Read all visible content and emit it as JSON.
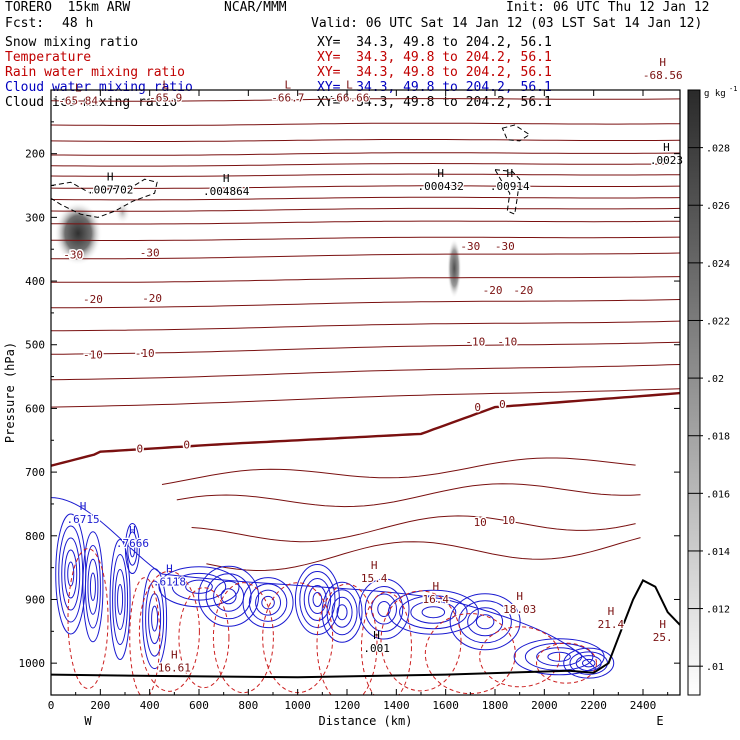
{
  "header": {
    "model": "TORERO  15km ARW",
    "center": "NCAR/MMM",
    "init": "Init: 06 UTC Thu 12 Jan 12",
    "fcst_label": "Fcst:",
    "fcst_value": "48 h",
    "valid": "Valid: 06 UTC Sat 14 Jan 12 (03 LST Sat 14 Jan 12)"
  },
  "fields": [
    {
      "name": "Snow mixing ratio",
      "xy": "XY=  34.3, 49.8 to 204.2, 56.1",
      "color": "#000000"
    },
    {
      "name": "Temperature",
      "xy": "XY=  34.3, 49.8 to 204.2, 56.1",
      "color": "#c00000"
    },
    {
      "name": "Rain water mixing ratio",
      "xy": "XY=  34.3, 49.8 to 204.2, 56.1",
      "color": "#c00000"
    },
    {
      "name": "Cloud water mixing ratio",
      "xy": "XY=  34.3, 49.8 to 204.2, 56.1",
      "color": "#0000c0"
    },
    {
      "name": "Cloud ice mixing ratio",
      "xy": "XY=  34.3, 49.8 to 204.2, 56.1",
      "color": "#000000"
    }
  ],
  "chart_data": {
    "type": "contour",
    "xlabel": "Distance (km)",
    "ylabel": "Pressure (hPa)",
    "xlim": [
      0,
      2550
    ],
    "ylim": [
      1050,
      100
    ],
    "x_ticks": [
      0,
      200,
      400,
      600,
      800,
      1000,
      1200,
      1400,
      1600,
      1800,
      2000,
      2200,
      2400
    ],
    "y_ticks": [
      200,
      300,
      400,
      500,
      600,
      700,
      800,
      900,
      1000
    ],
    "x_end_labels": {
      "left": "W",
      "right": "E"
    },
    "colorbar": {
      "unit": "g kg",
      "unit_exponent": "-1",
      "ticks": [
        0.01,
        0.012,
        0.014,
        0.016,
        0.018,
        0.02,
        0.022,
        0.024,
        0.026,
        0.028
      ],
      "tick_labels": [
        ".01",
        ".012",
        ".014",
        ".016",
        ".018",
        ".02",
        ".022",
        ".024",
        ".026",
        ".028"
      ],
      "range": [
        0.009,
        0.03
      ]
    },
    "temperature_contours": [
      {
        "level": -30,
        "labels": [
          {
            "x": 90,
            "p": 358
          },
          {
            "x": 400,
            "p": 355
          },
          {
            "x": 1700,
            "p": 345
          },
          {
            "x": 1840,
            "p": 345
          }
        ]
      },
      {
        "level": -20,
        "labels": [
          {
            "x": 170,
            "p": 428
          },
          {
            "x": 410,
            "p": 427
          },
          {
            "x": 1790,
            "p": 414
          },
          {
            "x": 1915,
            "p": 414
          }
        ]
      },
      {
        "level": -10,
        "labels": [
          {
            "x": 170,
            "p": 515
          },
          {
            "x": 380,
            "p": 513
          },
          {
            "x": 1720,
            "p": 495
          },
          {
            "x": 1850,
            "p": 495
          }
        ]
      },
      {
        "level": 0,
        "labels": [
          {
            "x": 360,
            "p": 663
          },
          {
            "x": 550,
            "p": 657
          },
          {
            "x": 1730,
            "p": 598
          },
          {
            "x": 1830,
            "p": 593
          }
        ]
      },
      {
        "level": 10,
        "labels": [
          {
            "x": 1740,
            "p": 778
          },
          {
            "x": 1855,
            "p": 775
          }
        ]
      }
    ],
    "extrema": [
      {
        "kind": "L",
        "value": "-65.84",
        "x": 110,
        "p": 115
      },
      {
        "kind": "L",
        "value": "-65.9",
        "x": 465,
        "p": 110
      },
      {
        "kind": "L",
        "value": "-66.7",
        "x": 960,
        "p": 110
      },
      {
        "kind": "L",
        "value": "-66.66",
        "x": 1210,
        "p": 110
      },
      {
        "kind": "H",
        "value": "-68.56",
        "x": 2480,
        "p": 75
      },
      {
        "kind": "H",
        "value": ".007702",
        "x": 240,
        "p": 255
      },
      {
        "kind": "H",
        "value": ".004864",
        "x": 710,
        "p": 257
      },
      {
        "kind": "H",
        "value": ".000432",
        "x": 1580,
        "p": 249
      },
      {
        "kind": "H",
        "value": ".00914",
        "x": 1860,
        "p": 249
      },
      {
        "kind": "H",
        "value": ".0023",
        "x": 2495,
        "p": 208
      },
      {
        "kind": "H",
        "value": ".6715",
        "x": 130,
        "p": 772
      },
      {
        "kind": "H",
        "value": ".7666",
        "x": 330,
        "p": 810
      },
      {
        "kind": "H",
        "value": ".6118",
        "x": 480,
        "p": 870
      },
      {
        "kind": "H",
        "value": "15.4",
        "x": 1310,
        "p": 865
      },
      {
        "kind": "H",
        "value": "16.4",
        "x": 1560,
        "p": 898
      },
      {
        "kind": "H",
        "value": "18.03",
        "x": 1900,
        "p": 913
      },
      {
        "kind": "H",
        "value": "21.4",
        "x": 2270,
        "p": 937
      },
      {
        "kind": "H",
        "value": "25.",
        "x": 2480,
        "p": 957
      },
      {
        "kind": "H",
        "value": "16.61",
        "x": 500,
        "p": 1005
      },
      {
        "kind": "H",
        "value": ".001",
        "x": 1320,
        "p": 975
      }
    ],
    "shading_maxima": [
      {
        "x": 110,
        "p": 325,
        "value": 0.029
      },
      {
        "x": 1635,
        "p": 380,
        "value": 0.021
      },
      {
        "x": 290,
        "p": 292,
        "value": 0.012
      }
    ]
  }
}
